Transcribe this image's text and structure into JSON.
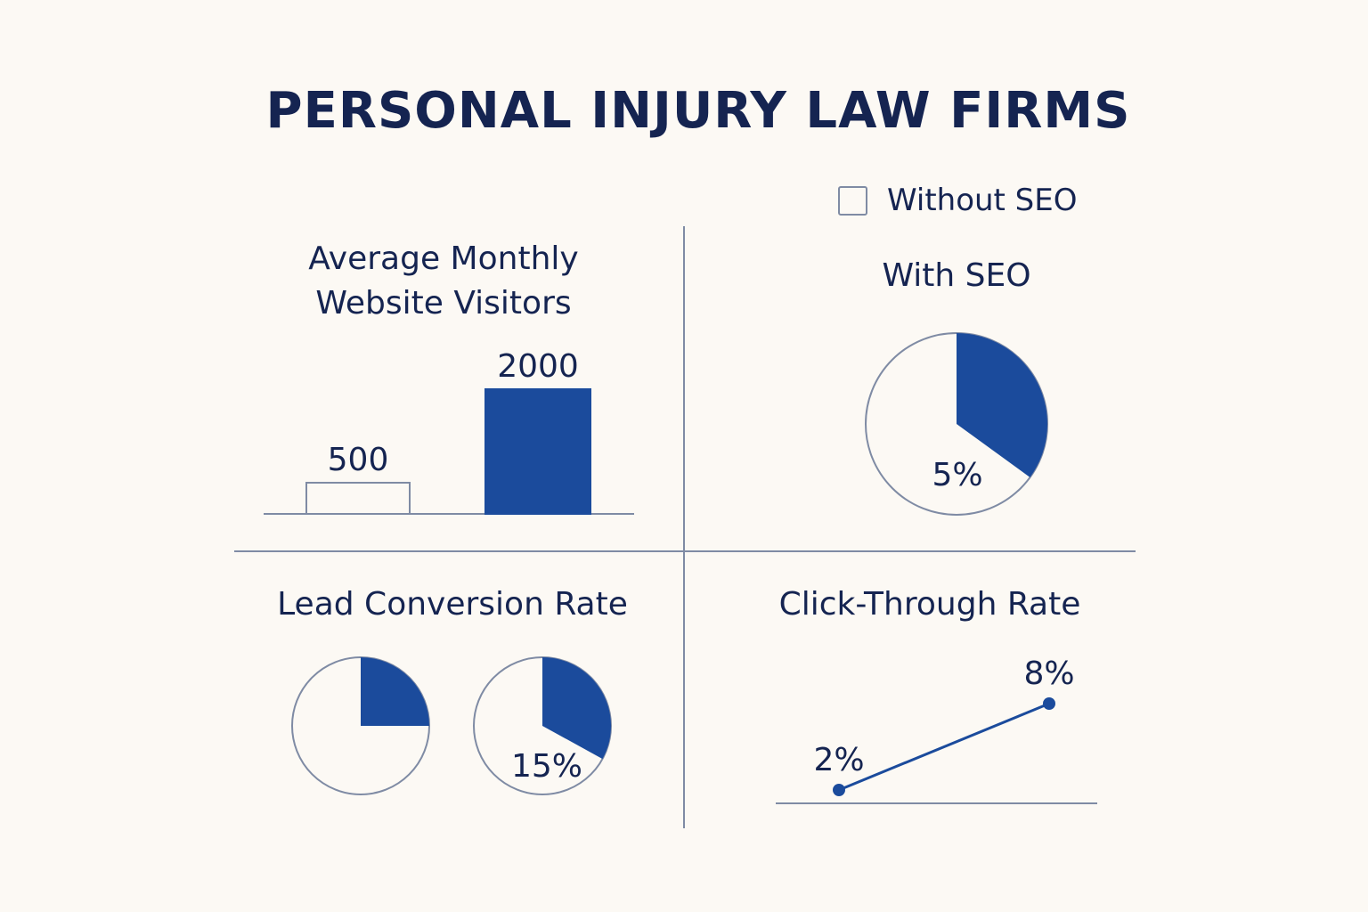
{
  "title": "PERSONAL INJURY LAW FIRMS",
  "legend": {
    "without_seo_label": "Without SEO"
  },
  "colors": {
    "primary": "#1b4b9c",
    "outline": "#7f8ba4",
    "text": "#152451",
    "background": "#fcf9f4"
  },
  "chart_data": [
    {
      "type": "bar",
      "title_line1": "Average Monthly",
      "title_line2": "Website Visitors",
      "values": [
        500,
        2000
      ],
      "value_labels": [
        "500",
        "2000"
      ]
    },
    {
      "type": "pie",
      "title": "With SEO",
      "filled_fraction": 0.35,
      "label": "5%"
    },
    {
      "type": "pie",
      "title": "Lead Conversion Rate",
      "pies": [
        {
          "filled_fraction": 0.25,
          "label": ""
        },
        {
          "filled_fraction": 0.33,
          "label": "15%"
        }
      ]
    },
    {
      "type": "line",
      "title": "Click-Through Rate",
      "values": [
        2,
        8
      ],
      "value_labels": [
        "2%",
        "8%"
      ]
    }
  ]
}
